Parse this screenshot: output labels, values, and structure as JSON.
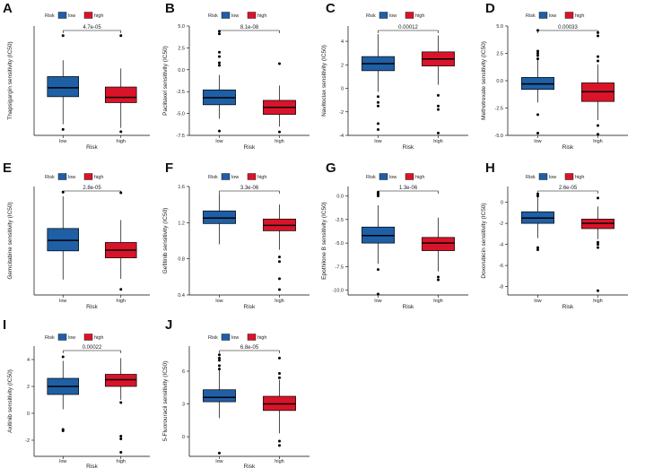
{
  "figure": {
    "legend_title": "Risk",
    "groups": [
      "low",
      "high"
    ],
    "colors": {
      "low": "#1f5fa6",
      "high": "#d9142a"
    },
    "xlabel": "Risk"
  },
  "chart_data": [
    {
      "type": "box",
      "panel": "A",
      "title": "",
      "ylabel": "Thapsigargin sensitivity (IC50)",
      "xlabel": "Risk",
      "ylim": [
        -9.5,
        5.2
      ],
      "yticks": [],
      "p_value": "4.7e-05",
      "legend": [
        "low",
        "high"
      ],
      "groups": [
        {
          "name": "low",
          "q1": -4.3,
          "median": -3.1,
          "q3": -1.6,
          "whisker_low": -8.0,
          "whisker_high": 0.6,
          "outliers": [
            3.9,
            -8.7
          ]
        },
        {
          "name": "high",
          "q1": -5.1,
          "median": -4.4,
          "q3": -3.0,
          "whisker_low": -8.5,
          "whisker_high": -0.5,
          "outliers": [
            3.9,
            -9.0
          ]
        }
      ]
    },
    {
      "type": "box",
      "panel": "B",
      "title": "",
      "ylabel": "Paclitaxel sensitivity (IC50)",
      "xlabel": "Risk",
      "ylim": [
        -7.5,
        5.0
      ],
      "yticks": [
        "-7.5",
        "-5.0",
        "-2.5",
        "0.0",
        "2.5",
        "5.0"
      ],
      "p_value": "8.1e-08",
      "legend": [
        "low",
        "high"
      ],
      "groups": [
        {
          "name": "low",
          "q1": -4.0,
          "median": -3.2,
          "q3": -2.3,
          "whisker_low": -5.6,
          "whisker_high": -0.6,
          "outliers": [
            4.4,
            4.1,
            2.0,
            1.5,
            0.8,
            0.5,
            -7.0
          ]
        },
        {
          "name": "high",
          "q1": -5.1,
          "median": -4.3,
          "q3": -3.5,
          "whisker_low": -6.5,
          "whisker_high": -1.8,
          "outliers": [
            0.7,
            -7.1
          ]
        }
      ]
    },
    {
      "type": "box",
      "panel": "C",
      "title": "",
      "ylabel": "Navitoclax sensitivity (IC50)",
      "xlabel": "Risk",
      "ylim": [
        -4.0,
        5.3
      ],
      "yticks": [
        "-4",
        "-2",
        "0",
        "2",
        "4"
      ],
      "p_value": "0.00012",
      "legend": [
        "low",
        "high"
      ],
      "groups": [
        {
          "name": "low",
          "q1": 1.5,
          "median": 2.1,
          "q3": 2.7,
          "whisker_low": -0.3,
          "whisker_high": 4.6,
          "outliers": [
            -0.7,
            -1.2,
            -1.5,
            -3.0,
            -3.5
          ]
        },
        {
          "name": "high",
          "q1": 1.9,
          "median": 2.5,
          "q3": 3.1,
          "whisker_low": 0.3,
          "whisker_high": 4.5,
          "outliers": [
            -0.6,
            -1.5,
            -1.8,
            -3.8
          ]
        }
      ]
    },
    {
      "type": "box",
      "panel": "D",
      "title": "",
      "ylabel": "Methotrexate sensitivity (IC50)",
      "xlabel": "Risk",
      "ylim": [
        -5.0,
        5.0
      ],
      "yticks": [
        "-5.0",
        "-2.5",
        "0.0",
        "2.5",
        "5.0"
      ],
      "p_value": "0.00033",
      "legend": [
        "low",
        "high"
      ],
      "groups": [
        {
          "name": "low",
          "q1": -0.8,
          "median": -0.3,
          "q3": 0.3,
          "whisker_low": -2.0,
          "whisker_high": 2.0,
          "outliers": [
            4.6,
            2.7,
            2.5,
            2.3,
            2.0,
            -3.1,
            -4.8
          ]
        },
        {
          "name": "high",
          "q1": -1.9,
          "median": -1.0,
          "q3": -0.2,
          "whisker_low": -3.6,
          "whisker_high": 1.5,
          "outliers": [
            4.4,
            4.1,
            2.2,
            1.8,
            -4.1,
            -4.9
          ]
        }
      ]
    },
    {
      "type": "box",
      "panel": "E",
      "title": "",
      "ylabel": "Gemcitabine sensitivity (IC50)",
      "xlabel": "Risk",
      "ylim": [
        -9.5,
        6.0
      ],
      "yticks": [],
      "p_value": "2.8e-05",
      "legend": [
        "low",
        "high"
      ],
      "groups": [
        {
          "name": "low",
          "q1": -3.2,
          "median": -1.7,
          "q3": 0.0,
          "whisker_low": -7.3,
          "whisker_high": 4.6,
          "outliers": [
            5.2
          ]
        },
        {
          "name": "high",
          "q1": -4.2,
          "median": -3.1,
          "q3": -2.0,
          "whisker_low": -7.2,
          "whisker_high": 1.2,
          "outliers": [
            5.1,
            -8.7
          ]
        }
      ]
    },
    {
      "type": "box",
      "panel": "F",
      "title": "",
      "ylabel": "Gefitinib sensitivity (IC50)",
      "xlabel": "Risk",
      "ylim": [
        0.4,
        1.6
      ],
      "yticks": [
        "0.4",
        "0.8",
        "1.2",
        "1.6"
      ],
      "p_value": "3.3e-06",
      "legend": [
        "low",
        "high"
      ],
      "groups": [
        {
          "name": "low",
          "q1": 1.19,
          "median": 1.25,
          "q3": 1.33,
          "whisker_low": 0.96,
          "whisker_high": 1.52,
          "outliers": []
        },
        {
          "name": "high",
          "q1": 1.11,
          "median": 1.17,
          "q3": 1.24,
          "whisker_low": 0.9,
          "whisker_high": 1.4,
          "outliers": [
            0.82,
            0.77,
            0.58,
            0.46
          ]
        }
      ]
    },
    {
      "type": "box",
      "panel": "G",
      "title": "",
      "ylabel": "Epothilone B sensitivity (IC50)",
      "xlabel": "Risk",
      "ylim": [
        -10.5,
        1.0
      ],
      "yticks": [
        "-10.0",
        "-7.5",
        "-5.0",
        "-2.5",
        "0.0"
      ],
      "p_value": "1.3e-06",
      "legend": [
        "low",
        "high"
      ],
      "groups": [
        {
          "name": "low",
          "q1": -5.0,
          "median": -4.2,
          "q3": -3.3,
          "whisker_low": -7.2,
          "whisker_high": -1.0,
          "outliers": [
            0.4,
            0.2,
            0.0,
            -7.8,
            -10.4
          ]
        },
        {
          "name": "high",
          "q1": -5.8,
          "median": -5.0,
          "q3": -4.4,
          "whisker_low": -8.0,
          "whisker_high": -2.3,
          "outliers": [
            -8.6,
            -8.9
          ]
        }
      ]
    },
    {
      "type": "box",
      "panel": "H",
      "title": "",
      "ylabel": "Doxorubicin sensitivity (IC50)",
      "xlabel": "Risk",
      "ylim": [
        -8.8,
        1.5
      ],
      "yticks": [
        "-8",
        "-6",
        "-4",
        "-2",
        "0"
      ],
      "p_value": "2.6e-05",
      "legend": [
        "low",
        "high"
      ],
      "groups": [
        {
          "name": "low",
          "q1": -2.0,
          "median": -1.5,
          "q3": -0.9,
          "whisker_low": -3.4,
          "whisker_high": 0.6,
          "outliers": [
            0.8,
            0.6,
            -4.3,
            -4.5
          ]
        },
        {
          "name": "high",
          "q1": -2.5,
          "median": -2.0,
          "q3": -1.6,
          "whisker_low": -3.5,
          "whisker_high": -0.4,
          "outliers": [
            0.4,
            -3.8,
            -4.0,
            -4.3,
            -8.4
          ]
        }
      ]
    },
    {
      "type": "box",
      "panel": "I",
      "title": "",
      "ylabel": "Axitinib sensitivity (IC50)",
      "xlabel": "Risk",
      "ylim": [
        -3.2,
        5.0
      ],
      "yticks": [
        "-2",
        "0",
        "2",
        "4"
      ],
      "p_value": "0.00022",
      "legend": [
        "low",
        "high"
      ],
      "groups": [
        {
          "name": "low",
          "q1": 1.4,
          "median": 2.0,
          "q3": 2.6,
          "whisker_low": 0.3,
          "whisker_high": 3.9,
          "outliers": [
            4.2,
            -1.2,
            -1.3
          ]
        },
        {
          "name": "high",
          "q1": 2.0,
          "median": 2.5,
          "q3": 2.9,
          "whisker_low": 1.0,
          "whisker_high": 4.1,
          "outliers": [
            0.8,
            -1.7,
            -1.9,
            -2.9
          ]
        }
      ]
    },
    {
      "type": "box",
      "panel": "J",
      "title": "",
      "ylabel": "5-Fluorouracil sensitivity (IC50)",
      "xlabel": "Risk",
      "ylim": [
        -1.8,
        8.3
      ],
      "yticks": [
        "0",
        "3",
        "6"
      ],
      "p_value": "6.8e-05",
      "legend": [
        "low",
        "high"
      ],
      "groups": [
        {
          "name": "low",
          "q1": 3.2,
          "median": 3.6,
          "q3": 4.3,
          "whisker_low": 1.7,
          "whisker_high": 6.2,
          "outliers": [
            7.5,
            7.2,
            7.0,
            6.5,
            6.2,
            -1.5
          ]
        },
        {
          "name": "high",
          "q1": 2.4,
          "median": 3.0,
          "q3": 3.7,
          "whisker_low": 0.3,
          "whisker_high": 5.2,
          "outliers": [
            7.2,
            5.8,
            5.4,
            -0.4,
            -0.8
          ]
        }
      ]
    }
  ]
}
